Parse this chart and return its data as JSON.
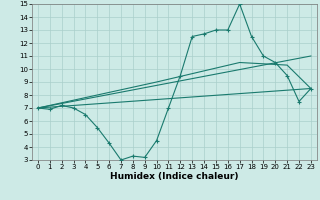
{
  "line1_x": [
    0,
    1,
    2,
    3,
    4,
    5,
    6,
    7,
    8,
    9,
    10,
    11,
    12,
    13,
    14,
    15,
    16,
    17,
    18,
    19,
    20,
    21,
    22,
    23
  ],
  "line1_y": [
    7.0,
    6.9,
    7.2,
    7.0,
    6.5,
    5.5,
    4.3,
    3.0,
    3.3,
    3.2,
    4.5,
    7.0,
    9.5,
    12.5,
    12.7,
    13.0,
    13.0,
    15.0,
    12.5,
    11.0,
    10.5,
    9.5,
    7.5,
    8.5
  ],
  "line2_x": [
    0,
    23
  ],
  "line2_y": [
    7.0,
    11.0
  ],
  "line3_x": [
    0,
    10,
    17,
    21,
    23
  ],
  "line3_y": [
    7.0,
    9.0,
    10.5,
    10.3,
    8.5
  ],
  "line4_x": [
    0,
    23
  ],
  "line4_y": [
    7.0,
    8.5
  ],
  "line_color": "#1a7a6e",
  "bg_color": "#cdeae6",
  "grid_color": "#aacfcb",
  "xlabel": "Humidex (Indice chaleur)",
  "xlim": [
    -0.5,
    23.5
  ],
  "ylim": [
    3,
    15
  ],
  "xticks": [
    0,
    1,
    2,
    3,
    4,
    5,
    6,
    7,
    8,
    9,
    10,
    11,
    12,
    13,
    14,
    15,
    16,
    17,
    18,
    19,
    20,
    21,
    22,
    23
  ],
  "yticks": [
    3,
    4,
    5,
    6,
    7,
    8,
    9,
    10,
    11,
    12,
    13,
    14,
    15
  ],
  "xlabel_fontsize": 6.5,
  "tick_fontsize": 5.0
}
